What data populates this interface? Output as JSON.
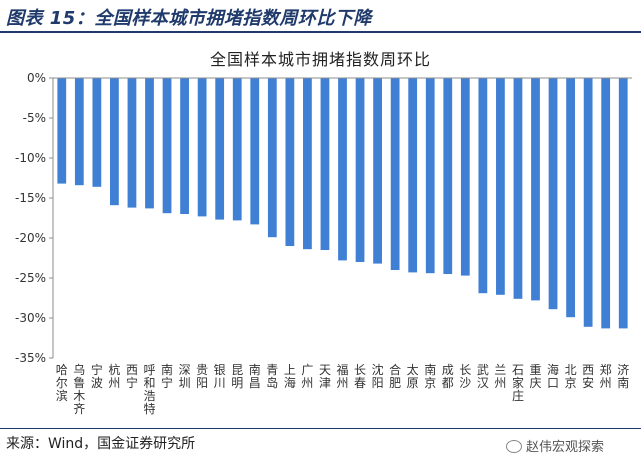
{
  "header": {
    "title": "图表 15：全国样本城市拥堵指数周环比下降"
  },
  "source": "来源：Wind，国金证券研究所",
  "watermark": {
    "text": "赵伟宏观探索",
    "icon": "wechat-icon"
  },
  "chart_data": {
    "type": "bar",
    "title": "全国样本城市拥堵指数周环比",
    "xlabel": "",
    "ylabel": "",
    "ylim": [
      -35,
      0
    ],
    "yticks": [
      "0%",
      "-5%",
      "-10%",
      "-15%",
      "-20%",
      "-25%",
      "-30%",
      "-35%"
    ],
    "grid": false,
    "bar_color": "#3f7fd4",
    "categories": [
      "哈尔滨",
      "乌鲁木齐",
      "宁波",
      "杭州",
      "西宁",
      "呼和浩特",
      "南宁",
      "深圳",
      "贵阳",
      "银川",
      "昆明",
      "南昌",
      "青岛",
      "上海",
      "广州",
      "天津",
      "福州",
      "长春",
      "沈阳",
      "合肥",
      "太原",
      "南京",
      "成都",
      "长沙",
      "武汉",
      "兰州",
      "石家庄",
      "重庆",
      "海口",
      "北京",
      "西安",
      "郑州",
      "济南"
    ],
    "values": [
      -13.2,
      -13.4,
      -13.6,
      -15.9,
      -16.2,
      -16.3,
      -16.9,
      -17.0,
      -17.3,
      -17.7,
      -17.8,
      -18.3,
      -19.9,
      -21.0,
      -21.4,
      -21.5,
      -22.8,
      -23.0,
      -23.2,
      -24.0,
      -24.3,
      -24.4,
      -24.5,
      -24.7,
      -26.9,
      -27.1,
      -27.6,
      -27.8,
      -28.9,
      -29.9,
      -31.1,
      -31.3,
      -31.3
    ]
  }
}
